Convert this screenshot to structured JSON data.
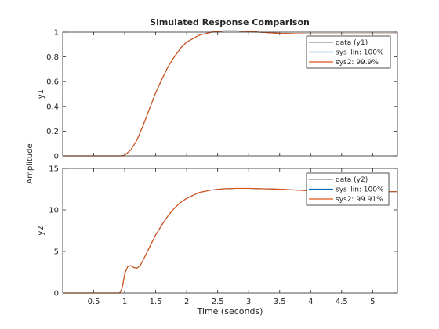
{
  "figure": {
    "title": "Simulated Response Comparison",
    "common_ylabel": "Amplitude",
    "xlabel": "Time (seconds)"
  },
  "colors": {
    "data": "#8c8c8c",
    "sys_lin": "#0072bd",
    "sys2": "#d95319",
    "axes": "#262626"
  },
  "chart_data": [
    {
      "type": "line",
      "title": "Simulated Response Comparison",
      "ylabel": "y1",
      "xlabel": "",
      "xlim": [
        0,
        5.4
      ],
      "ylim": [
        0,
        1
      ],
      "xticks": [
        0.5,
        1,
        1.5,
        2,
        2.5,
        3,
        3.5,
        4,
        4.5,
        5
      ],
      "xtick_labels": [
        "",
        "",
        "",
        "",
        "",
        "",
        "",
        "",
        "",
        ""
      ],
      "yticks": [
        0,
        0.2,
        0.4,
        0.6,
        0.8,
        1
      ],
      "ytick_labels": [
        "0",
        "0.2",
        "0.4",
        "0.6",
        "0.8",
        "1"
      ],
      "legend_position": "top-right",
      "x": [
        0,
        0.5,
        0.95,
        1.0,
        1.1,
        1.2,
        1.3,
        1.4,
        1.5,
        1.6,
        1.7,
        1.8,
        1.9,
        2.0,
        2.2,
        2.4,
        2.6,
        2.8,
        3.0,
        3.5,
        4.0,
        4.5,
        5.0,
        5.4
      ],
      "series": [
        {
          "name": "data (y1)",
          "color_key": "data",
          "values": [
            0,
            0,
            0,
            0.005,
            0.05,
            0.13,
            0.25,
            0.38,
            0.51,
            0.62,
            0.72,
            0.8,
            0.87,
            0.92,
            0.975,
            1.0,
            1.01,
            1.01,
            1.005,
            0.99,
            0.985,
            0.985,
            0.985,
            0.985
          ]
        },
        {
          "name": "sys_lin: 100%",
          "color_key": "sys_lin",
          "values": [
            0,
            0,
            0,
            0.005,
            0.05,
            0.13,
            0.25,
            0.38,
            0.51,
            0.62,
            0.72,
            0.8,
            0.87,
            0.92,
            0.975,
            1.0,
            1.01,
            1.01,
            1.005,
            0.99,
            0.985,
            0.985,
            0.985,
            0.985
          ]
        },
        {
          "name": "sys2: 99.9%",
          "color_key": "sys2",
          "values": [
            0,
            0,
            0,
            0.005,
            0.05,
            0.13,
            0.25,
            0.38,
            0.51,
            0.62,
            0.72,
            0.8,
            0.87,
            0.92,
            0.975,
            1.0,
            1.01,
            1.01,
            1.005,
            0.99,
            0.985,
            0.985,
            0.985,
            0.985
          ]
        }
      ]
    },
    {
      "type": "line",
      "title": "",
      "ylabel": "y2",
      "xlabel": "Time (seconds)",
      "xlim": [
        0,
        5.4
      ],
      "ylim": [
        0,
        15
      ],
      "xticks": [
        0.5,
        1,
        1.5,
        2,
        2.5,
        3,
        3.5,
        4,
        4.5,
        5
      ],
      "xtick_labels": [
        "0.5",
        "1",
        "1.5",
        "2",
        "2.5",
        "3",
        "3.5",
        "4",
        "4.5",
        "5"
      ],
      "yticks": [
        0,
        5,
        10,
        15
      ],
      "ytick_labels": [
        "0",
        "5",
        "10",
        "15"
      ],
      "legend_position": "top-right",
      "x": [
        0,
        0.5,
        0.92,
        0.96,
        1.0,
        1.05,
        1.1,
        1.15,
        1.2,
        1.25,
        1.3,
        1.4,
        1.5,
        1.6,
        1.7,
        1.8,
        1.9,
        2.0,
        2.2,
        2.4,
        2.6,
        2.8,
        3.0,
        3.5,
        4.0,
        4.5,
        5.0,
        5.4
      ],
      "series": [
        {
          "name": "data (y2)",
          "color_key": "data",
          "values": [
            0,
            0,
            0,
            0.6,
            2.3,
            3.2,
            3.3,
            3.05,
            3.0,
            3.3,
            4.0,
            5.5,
            7.0,
            8.2,
            9.3,
            10.2,
            10.9,
            11.4,
            12.1,
            12.4,
            12.55,
            12.6,
            12.6,
            12.5,
            12.3,
            12.2,
            12.2,
            12.2
          ]
        },
        {
          "name": "sys_lin: 100%",
          "color_key": "sys_lin",
          "values": [
            0,
            0,
            0,
            0.6,
            2.3,
            3.2,
            3.3,
            3.05,
            3.0,
            3.3,
            4.0,
            5.5,
            7.0,
            8.2,
            9.3,
            10.2,
            10.9,
            11.4,
            12.1,
            12.4,
            12.55,
            12.6,
            12.6,
            12.5,
            12.3,
            12.2,
            12.2,
            12.2
          ]
        },
        {
          "name": "sys2: 99.91%",
          "color_key": "sys2",
          "values": [
            0,
            0,
            0,
            0.6,
            2.3,
            3.2,
            3.3,
            3.05,
            3.0,
            3.3,
            4.0,
            5.5,
            7.0,
            8.2,
            9.3,
            10.2,
            10.9,
            11.4,
            12.1,
            12.4,
            12.55,
            12.6,
            12.6,
            12.5,
            12.3,
            12.2,
            12.2,
            12.2
          ]
        }
      ]
    }
  ]
}
